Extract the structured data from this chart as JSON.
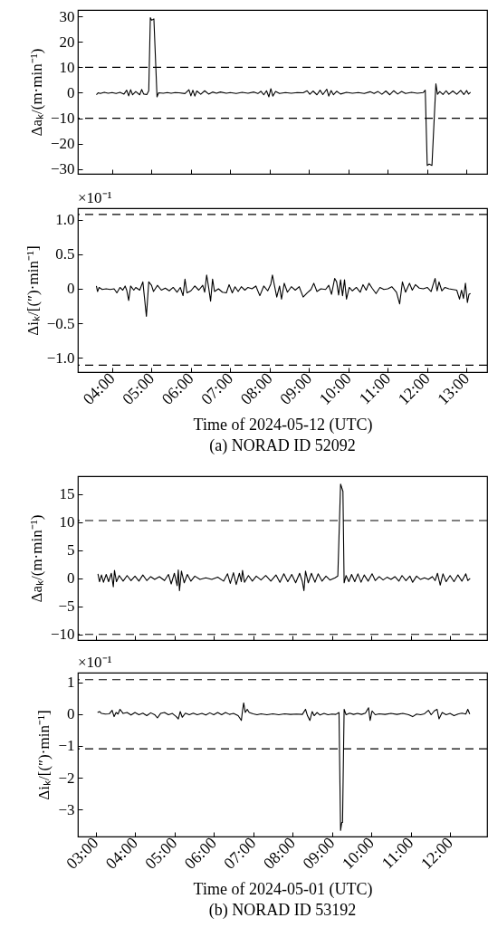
{
  "chart_data": [
    {
      "type": "line",
      "ylabel": "Δaₖ/(m·min⁻¹)",
      "tick_labels": "y",
      "grid": false,
      "line_style": "solid",
      "marker": "none",
      "xlim": [
        3.13,
        13.52
      ],
      "xticks": [
        {
          "value": 4,
          "label": null
        },
        {
          "value": 5,
          "label": null
        },
        {
          "value": 6,
          "label": null
        },
        {
          "value": 7,
          "label": null
        },
        {
          "value": 8,
          "label": null
        },
        {
          "value": 9,
          "label": null
        },
        {
          "value": 10,
          "label": null
        },
        {
          "value": 11,
          "label": null
        },
        {
          "value": 12,
          "label": null
        },
        {
          "value": 13,
          "label": null
        }
      ],
      "ylim": [
        -31.8,
        32.5
      ],
      "yticks": [
        -30,
        -20,
        -10,
        0,
        10,
        20,
        30
      ],
      "ref_lines": [
        {
          "axis": "y",
          "value": 10,
          "line_style": "dashed",
          "color": "#000000"
        },
        {
          "axis": "y",
          "value": -10,
          "line_style": "dashed",
          "color": "#000000"
        }
      ],
      "x": [
        3.6,
        3.65,
        3.7,
        3.8,
        3.9,
        4.0,
        4.1,
        4.2,
        4.3,
        4.37,
        4.42,
        4.47,
        4.52,
        4.6,
        4.7,
        4.75,
        4.8,
        4.88,
        4.93,
        4.97,
        5.0,
        5.03,
        5.06,
        5.14,
        5.18,
        5.3,
        5.4,
        5.5,
        5.6,
        5.7,
        5.85,
        5.95,
        6.0,
        6.05,
        6.1,
        6.15,
        6.25,
        6.35,
        6.45,
        6.55,
        6.65,
        6.75,
        6.9,
        7.0,
        7.15,
        7.3,
        7.45,
        7.6,
        7.7,
        7.78,
        7.85,
        7.92,
        7.98,
        8.03,
        8.08,
        8.15,
        8.25,
        8.4,
        8.55,
        8.7,
        8.85,
        8.95,
        9.02,
        9.1,
        9.2,
        9.28,
        9.35,
        9.45,
        9.5,
        9.56,
        9.62,
        9.7,
        9.8,
        9.95,
        10.1,
        10.25,
        10.4,
        10.55,
        10.65,
        10.75,
        10.85,
        10.95,
        11.05,
        11.15,
        11.25,
        11.35,
        11.45,
        11.6,
        11.75,
        11.9,
        11.95,
        12.0,
        12.05,
        12.12,
        12.22,
        12.26,
        12.32,
        12.4,
        12.48,
        12.55,
        12.65,
        12.75,
        12.85,
        12.93,
        13.0,
        13.05,
        13.1
      ],
      "series": [
        {
          "color": "#000000",
          "values": [
            -0.8,
            0,
            -0.3,
            0.2,
            -0.2,
            0.1,
            -0.3,
            0.2,
            -0.5,
            1.0,
            -1.2,
            1.2,
            -0.8,
            0.5,
            -0.8,
            1.3,
            -0.5,
            -0.7,
            0.8,
            29.5,
            28.5,
            28.7,
            29,
            -1.6,
            0,
            -0.2,
            0.1,
            -0.2,
            0.1,
            0,
            -0.3,
            1.2,
            -1.2,
            1.0,
            -1.3,
            0.7,
            -0.6,
            0.8,
            -0.5,
            0.3,
            -0.2,
            0.3,
            -0.2,
            0.1,
            -0.3,
            0.2,
            -0.2,
            0.3,
            -0.3,
            0.6,
            -0.8,
            0.8,
            -1.6,
            1.6,
            -1.3,
            0.5,
            -0.3,
            0.1,
            -0.2,
            0.1,
            0,
            0.8,
            -0.6,
            0.7,
            -0.8,
            1.0,
            -0.7,
            1.4,
            -1.3,
            0.9,
            -0.8,
            0.6,
            -0.5,
            0.2,
            -0.2,
            0.1,
            -0.3,
            0.4,
            -0.3,
            0.5,
            -0.6,
            0.7,
            -0.8,
            0.8,
            -0.5,
            0.5,
            -0.3,
            0.2,
            -0.2,
            0.1,
            1.0,
            -28.5,
            -28.0,
            -28.5,
            3.5,
            -0.6,
            0.5,
            -0.7,
            0.8,
            -0.6,
            0.7,
            -0.6,
            0.9,
            -0.7,
            0.9,
            -0.5,
            0.2
          ]
        }
      ]
    },
    {
      "type": "line",
      "ylabel": "Δiₖ/[(″)·min⁻¹]",
      "xlabel": "Time of 2024-05-12 (UTC)",
      "annotations": [
        "×10⁻¹",
        "(a) NORAD ID 52092"
      ],
      "grid": false,
      "line_style": "solid",
      "marker": "none",
      "xlim": [
        3.13,
        13.52
      ],
      "xticks": [
        {
          "value": 4,
          "label": "04:00"
        },
        {
          "value": 5,
          "label": "05:00"
        },
        {
          "value": 6,
          "label": "06:00"
        },
        {
          "value": 7,
          "label": "07:00"
        },
        {
          "value": 8,
          "label": "08:00"
        },
        {
          "value": 9,
          "label": "09:00"
        },
        {
          "value": 10,
          "label": "10:00"
        },
        {
          "value": 11,
          "label": "11:00"
        },
        {
          "value": 12,
          "label": "12:00"
        },
        {
          "value": 13,
          "label": "13:00"
        }
      ],
      "ylim": [
        -1.21,
        1.17
      ],
      "yticks": [
        {
          "value": -1,
          "label": "−1.0"
        },
        -0.5,
        {
          "value": 0,
          "label": "0"
        },
        0.5,
        {
          "value": 1,
          "label": "1.0"
        }
      ],
      "ref_lines": [
        {
          "axis": "y",
          "value": 1.08,
          "line_style": "dashed",
          "color": "#000000"
        },
        {
          "axis": "y",
          "value": -1.11,
          "line_style": "dashed",
          "color": "#000000"
        }
      ],
      "x": [
        3.6,
        3.63,
        3.67,
        3.75,
        3.85,
        3.95,
        4.05,
        4.12,
        4.2,
        4.27,
        4.33,
        4.37,
        4.42,
        4.47,
        4.55,
        4.6,
        4.7,
        4.78,
        4.87,
        4.93,
        5.0,
        5.05,
        5.15,
        5.25,
        5.35,
        5.45,
        5.55,
        5.65,
        5.73,
        5.8,
        5.85,
        5.9,
        6.0,
        6.1,
        6.2,
        6.3,
        6.35,
        6.4,
        6.45,
        6.5,
        6.55,
        6.6,
        6.7,
        6.8,
        6.9,
        6.97,
        7.05,
        7.12,
        7.2,
        7.28,
        7.37,
        7.45,
        7.55,
        7.65,
        7.75,
        7.85,
        7.95,
        8.03,
        8.07,
        8.12,
        8.18,
        8.25,
        8.3,
        8.37,
        8.45,
        8.55,
        8.65,
        8.75,
        8.85,
        8.95,
        9.05,
        9.12,
        9.2,
        9.3,
        9.42,
        9.5,
        9.57,
        9.65,
        9.7,
        9.75,
        9.8,
        9.85,
        9.9,
        9.95,
        10.02,
        10.1,
        10.2,
        10.3,
        10.37,
        10.45,
        10.52,
        10.6,
        10.7,
        10.8,
        10.9,
        11.0,
        11.1,
        11.22,
        11.3,
        11.37,
        11.45,
        11.55,
        11.62,
        11.7,
        11.8,
        11.9,
        12.0,
        12.1,
        12.15,
        12.2,
        12.25,
        12.3,
        12.37,
        12.45,
        12.55,
        12.65,
        12.75,
        12.82,
        12.87,
        12.92,
        12.97,
        13.02,
        13.06,
        13.1
      ],
      "series": [
        {
          "color": "#000000",
          "values": [
            0.04,
            -0.04,
            0.02,
            -0.01,
            0,
            -0.01,
            0,
            -0.06,
            0.02,
            -0.02,
            0.04,
            -0.02,
            -0.17,
            0.04,
            -0.02,
            0.02,
            -0.02,
            0.1,
            -0.4,
            0.1,
            0.05,
            -0.04,
            0.05,
            -0.02,
            0.01,
            -0.03,
            0.02,
            -0.05,
            0.02,
            -0.1,
            0.14,
            -0.06,
            -0.03,
            0.04,
            -0.02,
            0.05,
            -0.05,
            0.2,
            0.02,
            -0.18,
            0.14,
            -0.04,
            0,
            -0.05,
            -0.06,
            0.06,
            -0.06,
            0.03,
            -0.04,
            0.03,
            -0.02,
            0.02,
            0,
            0.04,
            -0.1,
            0.04,
            -0.03,
            0.07,
            0.2,
            0.05,
            -0.12,
            0.04,
            -0.15,
            0.08,
            -0.05,
            0.03,
            -0.02,
            0.03,
            -0.12,
            -0.06,
            -0.01,
            0.08,
            -0.04,
            0,
            -0.01,
            0.05,
            -0.08,
            0.15,
            0.1,
            -0.09,
            0.13,
            -0.1,
            0.13,
            -0.15,
            0.02,
            -0.03,
            0.02,
            -0.05,
            0.06,
            -0.02,
            0.08,
            0.01,
            -0.07,
            0.02,
            -0.01,
            0,
            0.03,
            -0.05,
            -0.22,
            0.1,
            -0.05,
            0.08,
            -0.02,
            0.06,
            0.01,
            0,
            0.02,
            -0.04,
            0.06,
            0.15,
            -0.03,
            0.1,
            -0.03,
            0.02,
            0,
            -0.01,
            -0.02,
            -0.15,
            -0.02,
            -0.14,
            0.08,
            -0.2,
            -0.08,
            -0.07
          ]
        }
      ]
    },
    {
      "type": "line",
      "ylabel": "Δaₖ/(m·min⁻¹)",
      "tick_labels": "y",
      "grid": false,
      "line_style": "solid",
      "marker": "none",
      "xlim": [
        2.55,
        12.94
      ],
      "xticks": [
        {
          "value": 3,
          "label": null
        },
        {
          "value": 4,
          "label": null
        },
        {
          "value": 5,
          "label": null
        },
        {
          "value": 6,
          "label": null
        },
        {
          "value": 7,
          "label": null
        },
        {
          "value": 8,
          "label": null
        },
        {
          "value": 9,
          "label": null
        },
        {
          "value": 10,
          "label": null
        },
        {
          "value": 11,
          "label": null
        },
        {
          "value": 12,
          "label": null
        }
      ],
      "ylim": [
        -11,
        18.2
      ],
      "yticks": [
        -10,
        -5,
        0,
        5,
        10,
        15
      ],
      "ref_lines": [
        {
          "axis": "y",
          "value": 10.3,
          "line_style": "dashed",
          "color": "#000000"
        },
        {
          "axis": "y",
          "value": -10,
          "line_style": "dashed",
          "color": "#000000"
        }
      ],
      "x": [
        3.06,
        3.1,
        3.15,
        3.2,
        3.27,
        3.33,
        3.4,
        3.45,
        3.48,
        3.53,
        3.6,
        3.7,
        3.8,
        3.9,
        4.0,
        4.1,
        4.2,
        4.3,
        4.4,
        4.5,
        4.62,
        4.75,
        4.85,
        4.92,
        5.0,
        5.07,
        5.1,
        5.13,
        5.18,
        5.25,
        5.33,
        5.42,
        5.52,
        5.65,
        5.8,
        5.95,
        6.1,
        6.25,
        6.35,
        6.42,
        6.5,
        6.57,
        6.65,
        6.7,
        6.73,
        6.78,
        6.88,
        6.98,
        7.08,
        7.2,
        7.32,
        7.45,
        7.58,
        7.68,
        7.78,
        7.88,
        7.98,
        8.08,
        8.18,
        8.25,
        8.29,
        8.33,
        8.4,
        8.48,
        8.57,
        8.65,
        8.75,
        8.85,
        8.95,
        9.08,
        9.15,
        9.22,
        9.28,
        9.31,
        9.36,
        9.43,
        9.5,
        9.58,
        9.66,
        9.74,
        9.82,
        9.92,
        10.02,
        10.1,
        10.2,
        10.3,
        10.4,
        10.5,
        10.6,
        10.7,
        10.78,
        10.88,
        10.98,
        11.05,
        11.15,
        11.25,
        11.35,
        11.45,
        11.55,
        11.62,
        11.68,
        11.75,
        11.82,
        11.9,
        12.0,
        12.1,
        12.2,
        12.3,
        12.4,
        12.45,
        12.51
      ],
      "series": [
        {
          "color": "#000000",
          "values": [
            0.8,
            -0.6,
            0.6,
            -0.7,
            0.7,
            -0.6,
            0.9,
            -1.5,
            1.4,
            -0.6,
            0.5,
            -0.5,
            0.5,
            -0.4,
            0.4,
            -0.5,
            0.6,
            -0.4,
            0.3,
            -0.2,
            0.3,
            -0.4,
            0.7,
            -1.0,
            0.9,
            -1.3,
            1.5,
            -2.2,
            1.3,
            -0.8,
            0.7,
            -0.5,
            0.4,
            -0.2,
            0.1,
            -0.2,
            0.2,
            -0.5,
            0.8,
            -0.9,
            1.0,
            -1.1,
            0.9,
            -0.6,
            1.4,
            -0.7,
            0.5,
            -0.5,
            0.4,
            -0.3,
            0.5,
            -0.5,
            0.6,
            -0.7,
            0.8,
            -0.6,
            0.7,
            -0.8,
            0.9,
            -0.6,
            -2.2,
            1.3,
            -0.8,
            0.9,
            -0.7,
            0.8,
            -0.5,
            0.4,
            -0.3,
            0.1,
            0.4,
            16.8,
            15.5,
            -0.8,
            0.5,
            -0.6,
            0.7,
            -0.6,
            0.8,
            -0.7,
            0.6,
            -0.5,
            0.8,
            -0.4,
            0.3,
            -0.3,
            0.2,
            -0.2,
            0.3,
            -0.5,
            0.5,
            -0.4,
            0.4,
            -0.7,
            0.4,
            -0.2,
            0.1,
            -0.2,
            0.3,
            -0.4,
            0.9,
            -1.2,
            0.8,
            -0.6,
            0.5,
            -0.6,
            0.6,
            -0.5,
            0.8,
            -0.4,
            0
          ]
        }
      ]
    },
    {
      "type": "line",
      "ylabel": "Δiₖ/[(″)·min⁻¹]",
      "xlabel": "Time of 2024-05-01 (UTC)",
      "annotations": [
        "×10⁻¹",
        "(b) NORAD ID 53192"
      ],
      "grid": false,
      "line_style": "solid",
      "marker": "none",
      "xlim": [
        2.55,
        12.94
      ],
      "xticks": [
        {
          "value": 3,
          "label": "03:00"
        },
        {
          "value": 4,
          "label": "04:00"
        },
        {
          "value": 5,
          "label": "05:00"
        },
        {
          "value": 6,
          "label": "06:00"
        },
        {
          "value": 7,
          "label": "07:00"
        },
        {
          "value": 8,
          "label": "08:00"
        },
        {
          "value": 9,
          "label": "09:00"
        },
        {
          "value": 10,
          "label": "10:00"
        },
        {
          "value": 11,
          "label": "11:00"
        },
        {
          "value": 12,
          "label": "12:00"
        }
      ],
      "ylim": [
        -3.84,
        1.3
      ],
      "yticks": [
        -3,
        -2,
        -1,
        0,
        1
      ],
      "ref_lines": [
        {
          "axis": "y",
          "value": 1.08,
          "line_style": "dashed",
          "color": "#000000"
        },
        {
          "axis": "y",
          "value": -1.09,
          "line_style": "dashed",
          "color": "#000000"
        }
      ],
      "x": [
        3.05,
        3.1,
        3.15,
        3.25,
        3.35,
        3.42,
        3.47,
        3.52,
        3.57,
        3.62,
        3.7,
        3.8,
        3.9,
        4.0,
        4.1,
        4.2,
        4.3,
        4.4,
        4.5,
        4.57,
        4.65,
        4.75,
        4.85,
        4.95,
        5.05,
        5.1,
        5.15,
        5.2,
        5.28,
        5.38,
        5.48,
        5.58,
        5.7,
        5.8,
        5.9,
        6.0,
        6.1,
        6.2,
        6.3,
        6.4,
        6.5,
        6.62,
        6.7,
        6.73,
        6.76,
        6.8,
        6.85,
        6.9,
        7.0,
        7.1,
        7.2,
        7.35,
        7.5,
        7.65,
        7.8,
        7.95,
        8.1,
        8.25,
        8.33,
        8.38,
        8.44,
        8.5,
        8.55,
        8.62,
        8.7,
        8.8,
        8.9,
        9.0,
        9.1,
        9.18,
        9.22,
        9.25,
        9.27,
        9.31,
        9.36,
        9.45,
        9.55,
        9.65,
        9.75,
        9.85,
        9.93,
        9.97,
        10.02,
        10.1,
        10.2,
        10.35,
        10.5,
        10.65,
        10.8,
        10.95,
        11.05,
        11.15,
        11.25,
        11.35,
        11.45,
        11.52,
        11.6,
        11.67,
        11.72,
        11.8,
        11.9,
        12.0,
        12.1,
        12.2,
        12.3,
        12.4,
        12.45,
        12.5
      ],
      "series": [
        {
          "color": "#000000",
          "values": [
            0.05,
            0.08,
            0.02,
            0,
            0.01,
            0.12,
            -0.08,
            0.05,
            0,
            0.15,
            0.02,
            0.05,
            -0.03,
            0.05,
            -0.02,
            0.03,
            -0.05,
            0.04,
            -0.02,
            -0.12,
            0.02,
            0.05,
            -0.02,
            0.02,
            -0.08,
            -0.15,
            0.08,
            -0.1,
            0.03,
            -0.02,
            0.03,
            -0.02,
            0.02,
            -0.03,
            0.04,
            -0.02,
            0.05,
            -0.02,
            0.05,
            -0.01,
            0.02,
            -0.05,
            -0.2,
            0.1,
            0.35,
            0.05,
            0.15,
            0.05,
            0.01,
            -0.02,
            0.01,
            -0.02,
            0.01,
            -0.02,
            0.01,
            -0.01,
            0,
            -0.01,
            0.15,
            -0.05,
            -0.2,
            0.08,
            -0.05,
            0.05,
            -0.03,
            0.02,
            -0.02,
            0,
            -0.01,
            0.05,
            -3.65,
            -3.4,
            -3.4,
            0.15,
            -0.02,
            0.03,
            -0.01,
            0.02,
            -0.01,
            0.03,
            0.2,
            -0.2,
            0.1,
            -0.02,
            0.01,
            -0.01,
            0.02,
            -0.01,
            0.02,
            -0.02,
            -0.08,
            0,
            -0.02,
            0.01,
            0.12,
            -0.02,
            0.1,
            0.15,
            -0.15,
            0.05,
            -0.02,
            0.02,
            -0.05,
            0,
            0.03,
            0,
            0.15,
            0
          ]
        }
      ]
    }
  ]
}
